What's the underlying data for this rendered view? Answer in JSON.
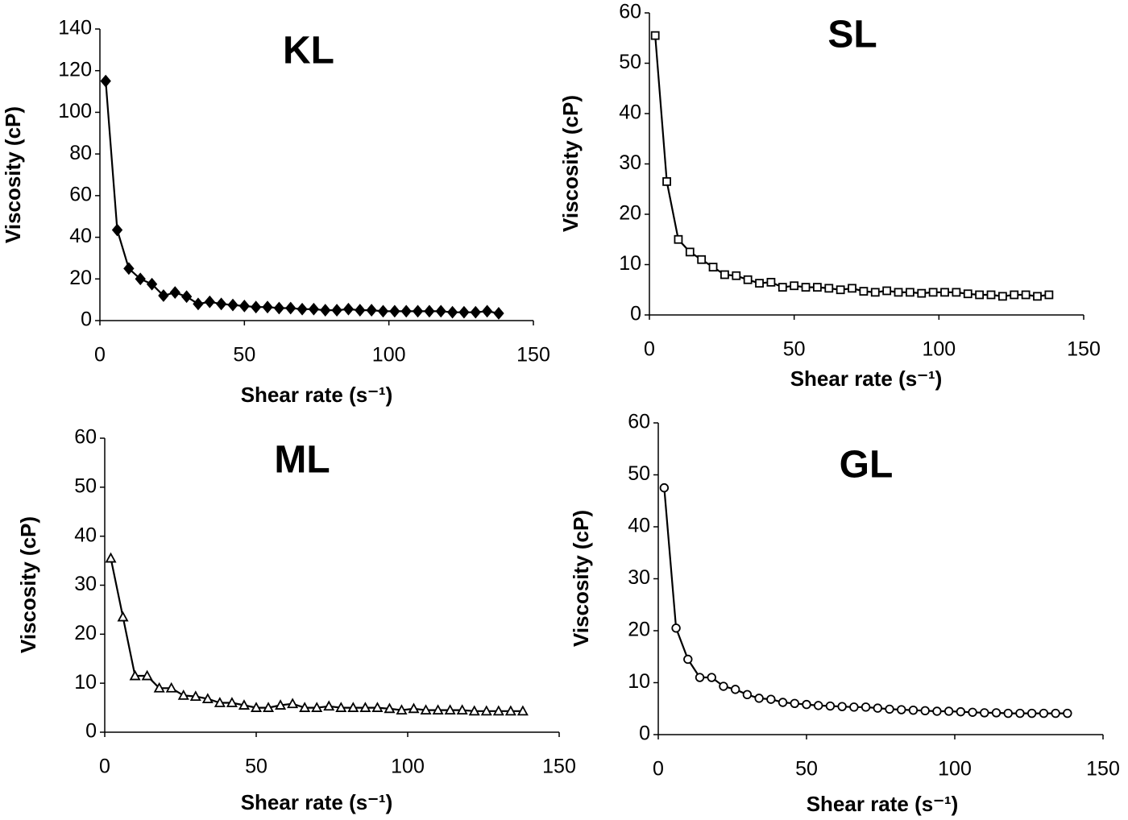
{
  "chart_data": [
    {
      "type": "line",
      "title": "KL",
      "x_label": "Shear rate (s⁻¹)",
      "y_label": "Viscosity (cP)",
      "x": [
        2,
        6,
        10,
        14,
        18,
        22,
        26,
        30,
        34,
        38,
        42,
        46,
        50,
        54,
        58,
        62,
        66,
        70,
        74,
        78,
        82,
        86,
        90,
        94,
        98,
        102,
        106,
        110,
        114,
        118,
        122,
        126,
        130,
        134,
        138
      ],
      "values": [
        115,
        43.5,
        25,
        20,
        17.5,
        12,
        13.5,
        11.5,
        8,
        9,
        8,
        7.5,
        7,
        6.5,
        6.5,
        6,
        6,
        5.5,
        5.5,
        5,
        5,
        5.5,
        5,
        5,
        4.5,
        4.5,
        4.5,
        4.5,
        4.5,
        4.5,
        4,
        4,
        4,
        4.5,
        3.5
      ],
      "color": "#000000",
      "marker": "diamond",
      "marker_filled": true,
      "xlim": [
        0,
        150
      ],
      "xticks": [
        0,
        50,
        100,
        150
      ],
      "ylim": [
        0,
        140
      ],
      "yticks": [
        0,
        20,
        40,
        60,
        80,
        100,
        120,
        140
      ]
    },
    {
      "type": "line",
      "title": "SL",
      "x_label": "Shear rate (s⁻¹)",
      "y_label": "Viscosity (cP)",
      "x": [
        2,
        6,
        10,
        14,
        18,
        22,
        26,
        30,
        34,
        38,
        42,
        46,
        50,
        54,
        58,
        62,
        66,
        70,
        74,
        78,
        82,
        86,
        90,
        94,
        98,
        102,
        106,
        110,
        114,
        118,
        122,
        126,
        130,
        134,
        138
      ],
      "values": [
        55.5,
        26.5,
        15,
        12.5,
        11,
        9.5,
        8,
        7.8,
        7,
        6.3,
        6.5,
        5.5,
        5.8,
        5.5,
        5.5,
        5.3,
        5,
        5.3,
        4.7,
        4.5,
        4.8,
        4.5,
        4.5,
        4.3,
        4.5,
        4.5,
        4.5,
        4.2,
        4,
        4,
        3.7,
        4,
        4,
        3.7,
        4
      ],
      "color": "#000000",
      "marker": "square",
      "marker_filled": false,
      "xlim": [
        0,
        150
      ],
      "xticks": [
        0,
        50,
        100,
        150
      ],
      "ylim": [
        0,
        60
      ],
      "yticks": [
        0,
        10,
        20,
        30,
        40,
        50,
        60
      ]
    },
    {
      "type": "line",
      "title": "ML",
      "x_label": "Shear rate (s⁻¹)",
      "y_label": "Viscosity (cP)",
      "x": [
        2,
        6,
        10,
        14,
        18,
        22,
        26,
        30,
        34,
        38,
        42,
        46,
        50,
        54,
        58,
        62,
        66,
        70,
        74,
        78,
        82,
        86,
        90,
        94,
        98,
        102,
        106,
        110,
        114,
        118,
        122,
        126,
        130,
        134,
        138
      ],
      "values": [
        35.5,
        23.5,
        11.5,
        11.5,
        9,
        9,
        7.5,
        7.3,
        6.8,
        6,
        6,
        5.5,
        5,
        5,
        5.5,
        5.8,
        5,
        5,
        5.3,
        5,
        5,
        5,
        5,
        4.8,
        4.5,
        4.8,
        4.5,
        4.5,
        4.5,
        4.5,
        4.3,
        4.3,
        4.3,
        4.3,
        4.3
      ],
      "color": "#000000",
      "marker": "triangle",
      "marker_filled": false,
      "xlim": [
        0,
        150
      ],
      "xticks": [
        0,
        50,
        100,
        150
      ],
      "ylim": [
        0,
        60
      ],
      "yticks": [
        0,
        10,
        20,
        30,
        40,
        50,
        60
      ]
    },
    {
      "type": "line",
      "title": "GL",
      "x_label": "Shear rate (s⁻¹)",
      "y_label": "Viscosity (cP)",
      "x": [
        2,
        6,
        10,
        14,
        18,
        22,
        26,
        30,
        34,
        38,
        42,
        46,
        50,
        54,
        58,
        62,
        66,
        70,
        74,
        78,
        82,
        86,
        90,
        94,
        98,
        102,
        106,
        110,
        114,
        118,
        122,
        126,
        130,
        134,
        138
      ],
      "values": [
        47.5,
        20.5,
        14.5,
        11,
        11,
        9.3,
        8.7,
        7.7,
        7,
        6.8,
        6.2,
        6,
        5.8,
        5.6,
        5.5,
        5.4,
        5.3,
        5.3,
        5.1,
        4.9,
        4.8,
        4.7,
        4.6,
        4.5,
        4.5,
        4.4,
        4.3,
        4.2,
        4.2,
        4.1,
        4.1,
        4.1,
        4.1,
        4.1,
        4.1
      ],
      "color": "#000000",
      "marker": "circle",
      "marker_filled": false,
      "xlim": [
        0,
        150
      ],
      "xticks": [
        0,
        50,
        100,
        150
      ],
      "ylim": [
        0,
        60
      ],
      "yticks": [
        0,
        10,
        20,
        30,
        40,
        50,
        60
      ]
    }
  ]
}
